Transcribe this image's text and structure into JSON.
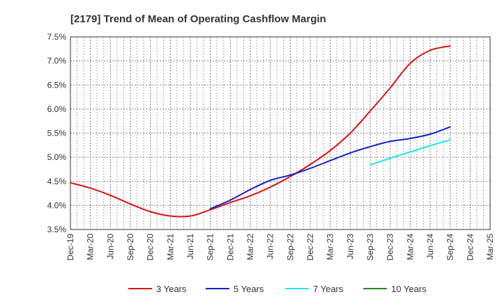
{
  "chart_data": {
    "type": "line",
    "title": "[2179]  Trend of Mean of Operating Cashflow Margin",
    "xlabel": "",
    "ylabel": "",
    "x_ticks": [
      "Dec-19",
      "Mar-20",
      "Jun-20",
      "Sep-20",
      "Dec-20",
      "Mar-21",
      "Jun-21",
      "Sep-21",
      "Dec-21",
      "Mar-22",
      "Jun-22",
      "Sep-22",
      "Dec-22",
      "Mar-23",
      "Jun-23",
      "Sep-23",
      "Dec-23",
      "Mar-24",
      "Jun-24",
      "Sep-24",
      "Dec-24",
      "Mar-25"
    ],
    "y_ticks": [
      "3.5%",
      "4.0%",
      "4.5%",
      "5.0%",
      "5.5%",
      "6.0%",
      "6.5%",
      "7.0%",
      "7.5%"
    ],
    "ylim": [
      3.5,
      7.5
    ],
    "grid": true,
    "legend_position": "bottom",
    "series": [
      {
        "name": "3 Years",
        "color": "#dd1111",
        "x": [
          "Dec-19",
          "Mar-20",
          "Jun-20",
          "Sep-20",
          "Dec-20",
          "Mar-21",
          "Jun-21",
          "Sep-21",
          "Dec-21",
          "Mar-22",
          "Jun-22",
          "Sep-22",
          "Dec-22",
          "Mar-23",
          "Jun-23",
          "Sep-23",
          "Dec-23",
          "Mar-24",
          "Jun-24",
          "Sep-24"
        ],
        "values": [
          4.47,
          4.36,
          4.21,
          4.03,
          3.87,
          3.78,
          3.78,
          3.91,
          4.06,
          4.2,
          4.38,
          4.6,
          4.85,
          5.14,
          5.5,
          5.96,
          6.44,
          6.95,
          7.22,
          7.31
        ]
      },
      {
        "name": "5 Years",
        "color": "#1122cc",
        "x": [
          "Sep-21",
          "Dec-21",
          "Mar-22",
          "Jun-22",
          "Sep-22",
          "Dec-22",
          "Mar-23",
          "Jun-23",
          "Sep-23",
          "Dec-23",
          "Mar-24",
          "Jun-24",
          "Sep-24"
        ],
        "values": [
          3.93,
          4.11,
          4.33,
          4.52,
          4.63,
          4.77,
          4.93,
          5.09,
          5.22,
          5.33,
          5.39,
          5.48,
          5.63
        ]
      },
      {
        "name": "7 Years",
        "color": "#22e5ee",
        "x": [
          "Sep-23",
          "Dec-23",
          "Mar-24",
          "Jun-24",
          "Sep-24"
        ],
        "values": [
          4.84,
          4.98,
          5.11,
          5.24,
          5.36
        ]
      },
      {
        "name": "10 Years",
        "color": "#228822",
        "x": [],
        "values": []
      }
    ]
  }
}
